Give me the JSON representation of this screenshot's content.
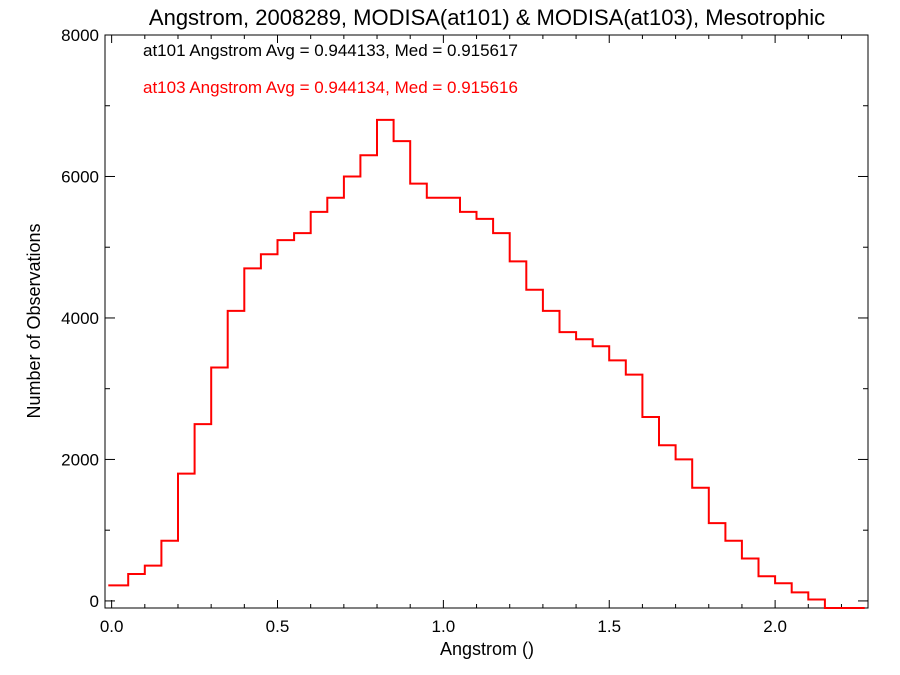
{
  "chart_data": {
    "type": "line",
    "title": "Angstrom, 2008289, MODISA(at101) & MODISA(at103), Mesotrophic",
    "xlabel": "Angstrom ()",
    "ylabel": "Number of Observations",
    "xlim": [
      -0.02,
      2.28
    ],
    "ylim": [
      -100,
      8000
    ],
    "xticks": [
      "0.0",
      "0.5",
      "1.0",
      "1.5",
      "2.0"
    ],
    "yticks": [
      "0",
      "2000",
      "4000",
      "6000",
      "8000"
    ],
    "grid": false,
    "annotations": [
      {
        "text": "at101 Angstrom Avg = 0.944133, Med = 0.915617",
        "color": "#000000"
      },
      {
        "text": "at103 Angstrom Avg = 0.944134, Med = 0.915616",
        "color": "#ff0000"
      }
    ],
    "series": [
      {
        "color": "#ff0000",
        "style": "histogram-step",
        "x": [
          -0.01,
          0.05,
          0.1,
          0.15,
          0.2,
          0.25,
          0.3,
          0.35,
          0.4,
          0.45,
          0.5,
          0.55,
          0.6,
          0.65,
          0.7,
          0.75,
          0.8,
          0.85,
          0.9,
          0.95,
          1.0,
          1.05,
          1.1,
          1.15,
          1.2,
          1.25,
          1.3,
          1.35,
          1.4,
          1.45,
          1.5,
          1.55,
          1.6,
          1.65,
          1.7,
          1.75,
          1.8,
          1.85,
          1.9,
          1.95,
          2.0,
          2.05,
          2.1,
          2.15,
          2.2,
          2.27
        ],
        "y": [
          220,
          380,
          500,
          850,
          1800,
          2500,
          3300,
          4100,
          4700,
          4900,
          5100,
          5200,
          5500,
          5700,
          6000,
          6300,
          6800,
          6500,
          5900,
          5700,
          5700,
          5500,
          5400,
          5200,
          4800,
          4400,
          4100,
          3800,
          3700,
          3600,
          3400,
          3200,
          2600,
          2200,
          2000,
          1600,
          1100,
          850,
          600,
          350,
          250,
          120,
          20,
          -100,
          -100,
          -100
        ]
      }
    ]
  }
}
